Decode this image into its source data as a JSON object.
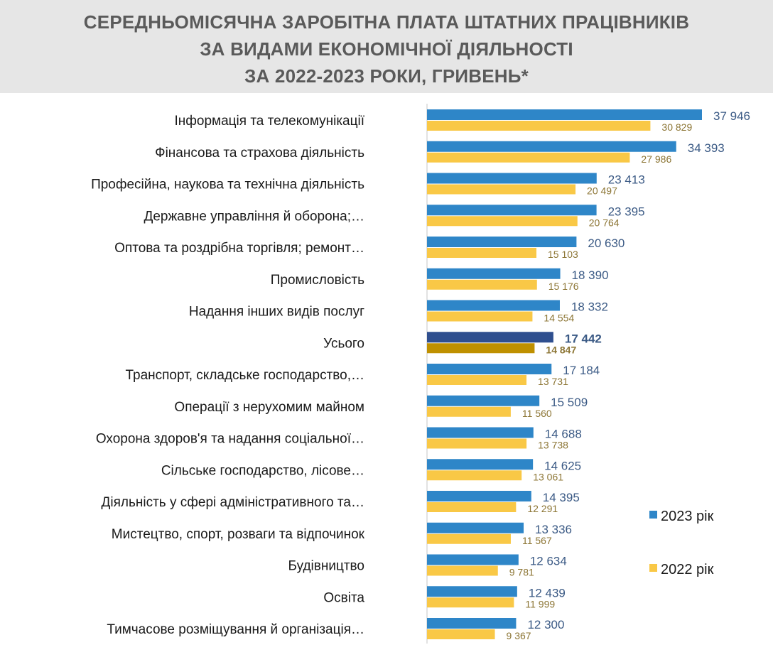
{
  "title_lines": [
    "СЕРЕДНЬОМІСЯЧНА ЗАРОБІТНА ПЛАТА ШТАТНИХ ПРАЦІВНИКІВ",
    "ЗА ВИДАМИ ЕКОНОМІЧНОЇ ДІЯЛЬНОСТІ",
    "ЗА 2022-2023 РОКИ, ГРИВЕНЬ*"
  ],
  "chart_data": {
    "type": "bar",
    "orientation": "horizontal",
    "title": "СЕРЕДНЬОМІСЯЧНА ЗАРОБІТНА ПЛАТА ШТАТНИХ ПРАЦІВНИКІВ ЗА ВИДАМИ ЕКОНОМІЧНОЇ ДІЯЛЬНОСТІ ЗА 2022-2023 РОКИ, ГРИВЕНЬ*",
    "categories": [
      "Інформація та телекомунікації",
      "Фінансова та страхова діяльність",
      "Професійна, наукова та технічна діяльність",
      "Державне управління й оборона;…",
      "Оптова та роздрібна торгівля; ремонт…",
      "Промисловість",
      "Надання інших видів послуг",
      "Усього",
      "Транспорт, складське господарство,…",
      "Операції з нерухомим майном",
      "Охорона здоров'я та надання соціальної…",
      "Сільське господарство, лісове…",
      "Діяльність у сфері адміністративного та…",
      "Мистецтво, спорт, розваги та відпочинок",
      "Будівництво",
      "Освіта",
      "Тимчасове розміщування й організація…"
    ],
    "highlight_category": "Усього",
    "series": [
      {
        "name": "2023 рік",
        "color": "#2e86c8",
        "highlight_color": "#2f4f8f",
        "values": [
          37946,
          34393,
          23413,
          23395,
          20630,
          18390,
          18332,
          17442,
          17184,
          15509,
          14688,
          14625,
          14395,
          13336,
          12634,
          12439,
          12300
        ]
      },
      {
        "name": "2022 рік",
        "color": "#f9c846",
        "highlight_color": "#bf9000",
        "values": [
          30829,
          27986,
          20497,
          20764,
          15103,
          15176,
          14554,
          14847,
          13731,
          11560,
          13738,
          13061,
          12291,
          11567,
          9781,
          11999,
          9367
        ]
      }
    ],
    "xlim": [
      0,
      38000
    ],
    "grid": false,
    "data_labels": true,
    "legend_position": "right"
  }
}
